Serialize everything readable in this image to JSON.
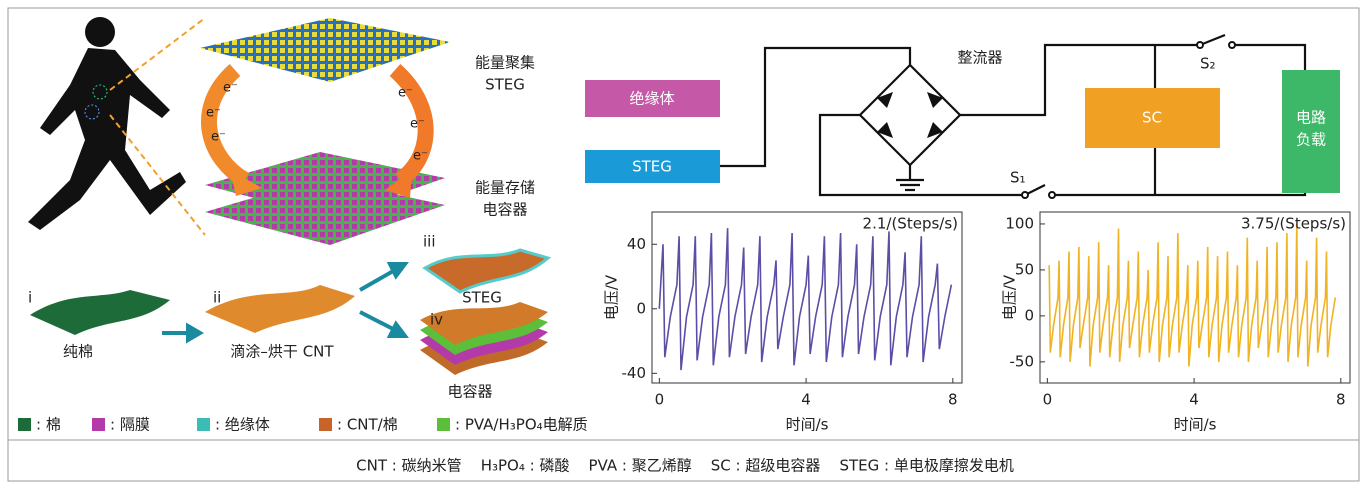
{
  "illustration": {
    "top_label": [
      "能量聚集",
      "STEG"
    ],
    "bottom_label": [
      "能量存储",
      "电容器"
    ],
    "electrons": [
      "e⁻",
      "e⁻",
      "e⁻",
      "e⁻",
      "e⁻",
      "e⁻"
    ]
  },
  "process": {
    "steps": [
      {
        "numeral": "i",
        "label": "纯棉"
      },
      {
        "numeral": "ii",
        "label": "滴涂–烘干 CNT"
      },
      {
        "numeral": "iii",
        "label": "STEG"
      },
      {
        "numeral": "iv",
        "label": "电容器"
      }
    ]
  },
  "circuit": {
    "insulator": "绝缘体",
    "steg": "STEG",
    "rectifier": "整流器",
    "switch_2": "S₂",
    "sc": "SC",
    "switch_1": "S₁",
    "load": [
      "电路",
      "负载"
    ]
  },
  "legend": [
    ": 棉",
    ": 隔膜",
    ": 绝缘体",
    ": CNT/棉",
    ": PVA/H₃PO₄电解质"
  ],
  "footnote": "CNT : 碳纳米管    H₃PO₄ : 磷酸    PVA : 聚乙烯醇    SC : 超级电容器    STEG : 单电极摩擦发电机",
  "chart_data": [
    {
      "type": "line",
      "annotation": "2.1/(Steps/s)",
      "xlabel": "时间/s",
      "ylabel": "电压/V",
      "xlim": [
        -0.2,
        8.25
      ],
      "ylim": [
        -46,
        60
      ],
      "xticks": [
        0,
        4,
        8
      ],
      "yticks": [
        -40,
        0,
        40
      ],
      "x": [
        0,
        0.1,
        0.15,
        0.3,
        0.48,
        0.54,
        0.59,
        0.74,
        0.92,
        0.98,
        1.03,
        1.18,
        1.36,
        1.42,
        1.47,
        1.62,
        1.8,
        1.86,
        1.91,
        2.06,
        2.24,
        2.3,
        2.35,
        2.5,
        2.68,
        2.74,
        2.79,
        2.94,
        3.12,
        3.18,
        3.23,
        3.38,
        3.56,
        3.62,
        3.67,
        3.82,
        4,
        4.06,
        4.11,
        4.26,
        4.44,
        4.5,
        4.55,
        4.7,
        4.88,
        4.94,
        4.99,
        5.14,
        5.32,
        5.38,
        5.43,
        5.58,
        5.76,
        5.82,
        5.87,
        6.02,
        6.2,
        6.26,
        6.31,
        6.46,
        6.64,
        6.7,
        6.75,
        6.9,
        7.08,
        7.14,
        7.19,
        7.34,
        7.52,
        7.58,
        7.63,
        7.78,
        7.96
      ],
      "series": [
        {
          "color": "#5a4ea6",
          "values": [
            0,
            40,
            -30,
            -5,
            15,
            45,
            -38,
            -5,
            15,
            45,
            -32,
            -5,
            15,
            47,
            -35,
            -5,
            15,
            50,
            -30,
            -5,
            15,
            38,
            -28,
            -5,
            15,
            45,
            -33,
            -5,
            15,
            30,
            -25,
            -5,
            15,
            47,
            -35,
            -5,
            15,
            33,
            -28,
            -5,
            15,
            45,
            -33,
            -5,
            15,
            47,
            -30,
            -5,
            15,
            40,
            -28,
            -5,
            15,
            45,
            -32,
            -5,
            15,
            48,
            -35,
            -5,
            15,
            35,
            -30,
            -5,
            15,
            45,
            -33,
            -5,
            15,
            28,
            -25,
            -5,
            15
          ]
        }
      ]
    },
    {
      "type": "line",
      "annotation": "3.75/(Steps/s)",
      "xlabel": "时间/s",
      "ylabel": "电压/V",
      "xlim": [
        -0.2,
        8.25
      ],
      "ylim": [
        -73,
        113
      ],
      "xticks": [
        0,
        4,
        8
      ],
      "yticks": [
        -50,
        0,
        50,
        100
      ],
      "x": [
        0.05,
        0.08,
        0.17,
        0.29,
        0.32,
        0.35,
        0.44,
        0.56,
        0.59,
        0.62,
        0.71,
        0.83,
        0.86,
        0.89,
        0.98,
        1.1,
        1.13,
        1.16,
        1.25,
        1.37,
        1.4,
        1.43,
        1.52,
        1.64,
        1.67,
        1.7,
        1.79,
        1.91,
        1.94,
        1.97,
        2.06,
        2.18,
        2.21,
        2.24,
        2.33,
        2.45,
        2.48,
        2.51,
        2.6,
        2.72,
        2.75,
        2.78,
        2.87,
        2.99,
        3.02,
        3.05,
        3.14,
        3.26,
        3.29,
        3.32,
        3.41,
        3.53,
        3.56,
        3.59,
        3.68,
        3.8,
        3.83,
        3.86,
        3.95,
        4.07,
        4.1,
        4.13,
        4.22,
        4.34,
        4.37,
        4.4,
        4.49,
        4.61,
        4.64,
        4.67,
        4.76,
        4.88,
        4.91,
        4.94,
        5.03,
        5.15,
        5.18,
        5.21,
        5.3,
        5.42,
        5.45,
        5.48,
        5.57,
        5.69,
        5.72,
        5.75,
        5.84,
        5.96,
        5.99,
        6.02,
        6.11,
        6.23,
        6.26,
        6.29,
        6.38,
        6.5,
        6.53,
        6.56,
        6.65,
        6.77,
        6.8,
        6.83,
        6.92,
        7.04,
        7.07,
        7.1,
        7.19,
        7.31,
        7.34,
        7.37,
        7.46,
        7.58,
        7.61,
        7.64,
        7.73,
        7.85
      ],
      "series": [
        {
          "color": "#f0b323",
          "values": [
            55,
            -40,
            -10,
            20,
            60,
            -45,
            -10,
            20,
            70,
            -50,
            -10,
            20,
            75,
            -35,
            -10,
            20,
            65,
            -55,
            -10,
            20,
            80,
            -40,
            -10,
            20,
            55,
            -45,
            -10,
            20,
            95,
            -50,
            -10,
            20,
            60,
            -35,
            -10,
            20,
            70,
            -45,
            -10,
            20,
            50,
            -40,
            -10,
            20,
            80,
            -50,
            -10,
            20,
            65,
            -45,
            -10,
            20,
            90,
            -40,
            -10,
            20,
            55,
            -55,
            -10,
            20,
            60,
            -35,
            -10,
            20,
            75,
            -45,
            -10,
            20,
            65,
            -50,
            -10,
            20,
            70,
            -40,
            -10,
            20,
            55,
            -45,
            -10,
            20,
            85,
            -50,
            -10,
            20,
            60,
            -35,
            -10,
            20,
            75,
            -45,
            -10,
            20,
            80,
            -40,
            -10,
            20,
            90,
            -50,
            -10,
            20,
            100,
            -45,
            -10,
            20,
            60,
            -55,
            -10,
            20,
            85,
            -40,
            -10,
            20,
            70,
            -45,
            -10,
            20
          ]
        }
      ]
    }
  ]
}
